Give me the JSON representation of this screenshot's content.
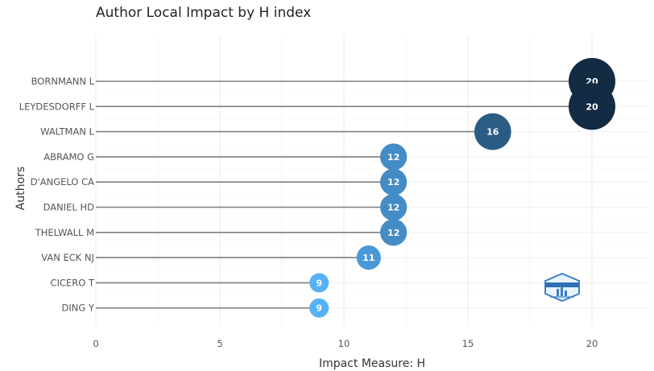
{
  "chart_data": {
    "type": "lollipop",
    "title": "Author Local Impact by H index",
    "xlabel": "Impact Measure: H",
    "ylabel": "Authors",
    "xlim": [
      0,
      22
    ],
    "xticks": [
      0,
      5,
      10,
      15,
      20
    ],
    "grid": true,
    "categories": [
      "BORNMANN L",
      "LEYDESDORFF L",
      "WALTMAN L",
      "ABRAMO G",
      "D'ANGELO CA",
      "DANIEL HD",
      "THELWALL M",
      "VAN ECK NJ",
      "CICERO T",
      "DING Y"
    ],
    "values": [
      20,
      20,
      16,
      12,
      12,
      12,
      12,
      11,
      9,
      9
    ],
    "color_scale": [
      "#56b1f7",
      "#132b43"
    ]
  }
}
